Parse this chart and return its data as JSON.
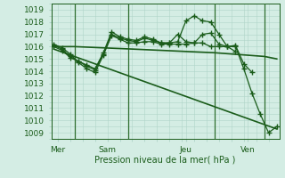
{
  "xlabel": "Pression niveau de la mer( hPa )",
  "bg_color": "#d4ede4",
  "grid_color": "#afd4c8",
  "line_color": "#1a5c1a",
  "vline_color": "#2d6e2d",
  "ylim": [
    1008.5,
    1019.5
  ],
  "yticks": [
    1009,
    1010,
    1011,
    1012,
    1013,
    1014,
    1015,
    1016,
    1017,
    1018,
    1019
  ],
  "xlim": [
    -0.3,
    27.3
  ],
  "day_positions": [
    0.5,
    6.5,
    16.0,
    23.5
  ],
  "day_labels": [
    "Mer",
    "Sam",
    "Jeu",
    "Ven"
  ],
  "vline_x": [
    2.5,
    9.0,
    19.5,
    25.5
  ],
  "series": [
    {
      "x": [
        0,
        1,
        2,
        3,
        4,
        5,
        6,
        7,
        8,
        9,
        10,
        11,
        12,
        13,
        14,
        15,
        16,
        17,
        18,
        19,
        20,
        21,
        22,
        23,
        24,
        25,
        26,
        27
      ],
      "y": [
        1016.0,
        1015.7,
        1015.1,
        1014.8,
        1014.5,
        1014.2,
        1015.5,
        1017.2,
        1016.8,
        1016.6,
        1016.5,
        1016.8,
        1016.6,
        1016.3,
        1016.3,
        1016.4,
        1018.1,
        1018.5,
        1018.1,
        1018.0,
        1017.0,
        1016.0,
        1016.0,
        1014.2,
        1012.2,
        1010.5,
        1009.0,
        1009.5
      ],
      "marker": "+",
      "markersize": 4,
      "lw": 0.9
    },
    {
      "x": [
        0,
        1,
        2,
        3,
        4,
        5,
        6,
        7,
        8,
        9,
        10,
        11,
        12,
        13,
        14,
        15,
        16,
        17,
        18,
        19,
        20,
        21,
        22,
        23,
        24
      ],
      "y": [
        1016.1,
        1015.8,
        1015.2,
        1014.8,
        1014.4,
        1014.1,
        1015.4,
        1017.0,
        1016.7,
        1016.5,
        1016.4,
        1016.7,
        1016.5,
        1016.3,
        1016.3,
        1017.0,
        1016.4,
        1016.3,
        1017.0,
        1017.1,
        1016.2,
        1016.0,
        1016.1,
        1014.6,
        1013.9
      ],
      "marker": "+",
      "markersize": 4,
      "lw": 0.9
    },
    {
      "x": [
        0,
        1,
        2,
        3,
        4,
        5,
        6,
        7,
        8,
        9,
        10,
        11,
        12,
        13,
        14,
        15,
        16,
        17,
        18,
        19,
        20,
        21,
        22
      ],
      "y": [
        1016.2,
        1015.9,
        1015.4,
        1014.7,
        1014.2,
        1013.9,
        1015.3,
        1016.9,
        1016.6,
        1016.3,
        1016.3,
        1016.4,
        1016.4,
        1016.2,
        1016.2,
        1016.2,
        1016.2,
        1016.3,
        1016.3,
        1016.0,
        1016.0,
        1016.0,
        1015.6
      ],
      "marker": "+",
      "markersize": 4,
      "lw": 0.9
    },
    {
      "x": [
        0,
        2.5,
        9.5,
        19.5,
        25.5,
        27
      ],
      "y": [
        1016.0,
        1016.0,
        1015.8,
        1015.5,
        1015.2,
        1015.0
      ],
      "marker": null,
      "markersize": 0,
      "lw": 1.2
    },
    {
      "x": [
        0,
        27
      ],
      "y": [
        1015.8,
        1009.3
      ],
      "marker": null,
      "markersize": 0,
      "lw": 1.2
    }
  ]
}
